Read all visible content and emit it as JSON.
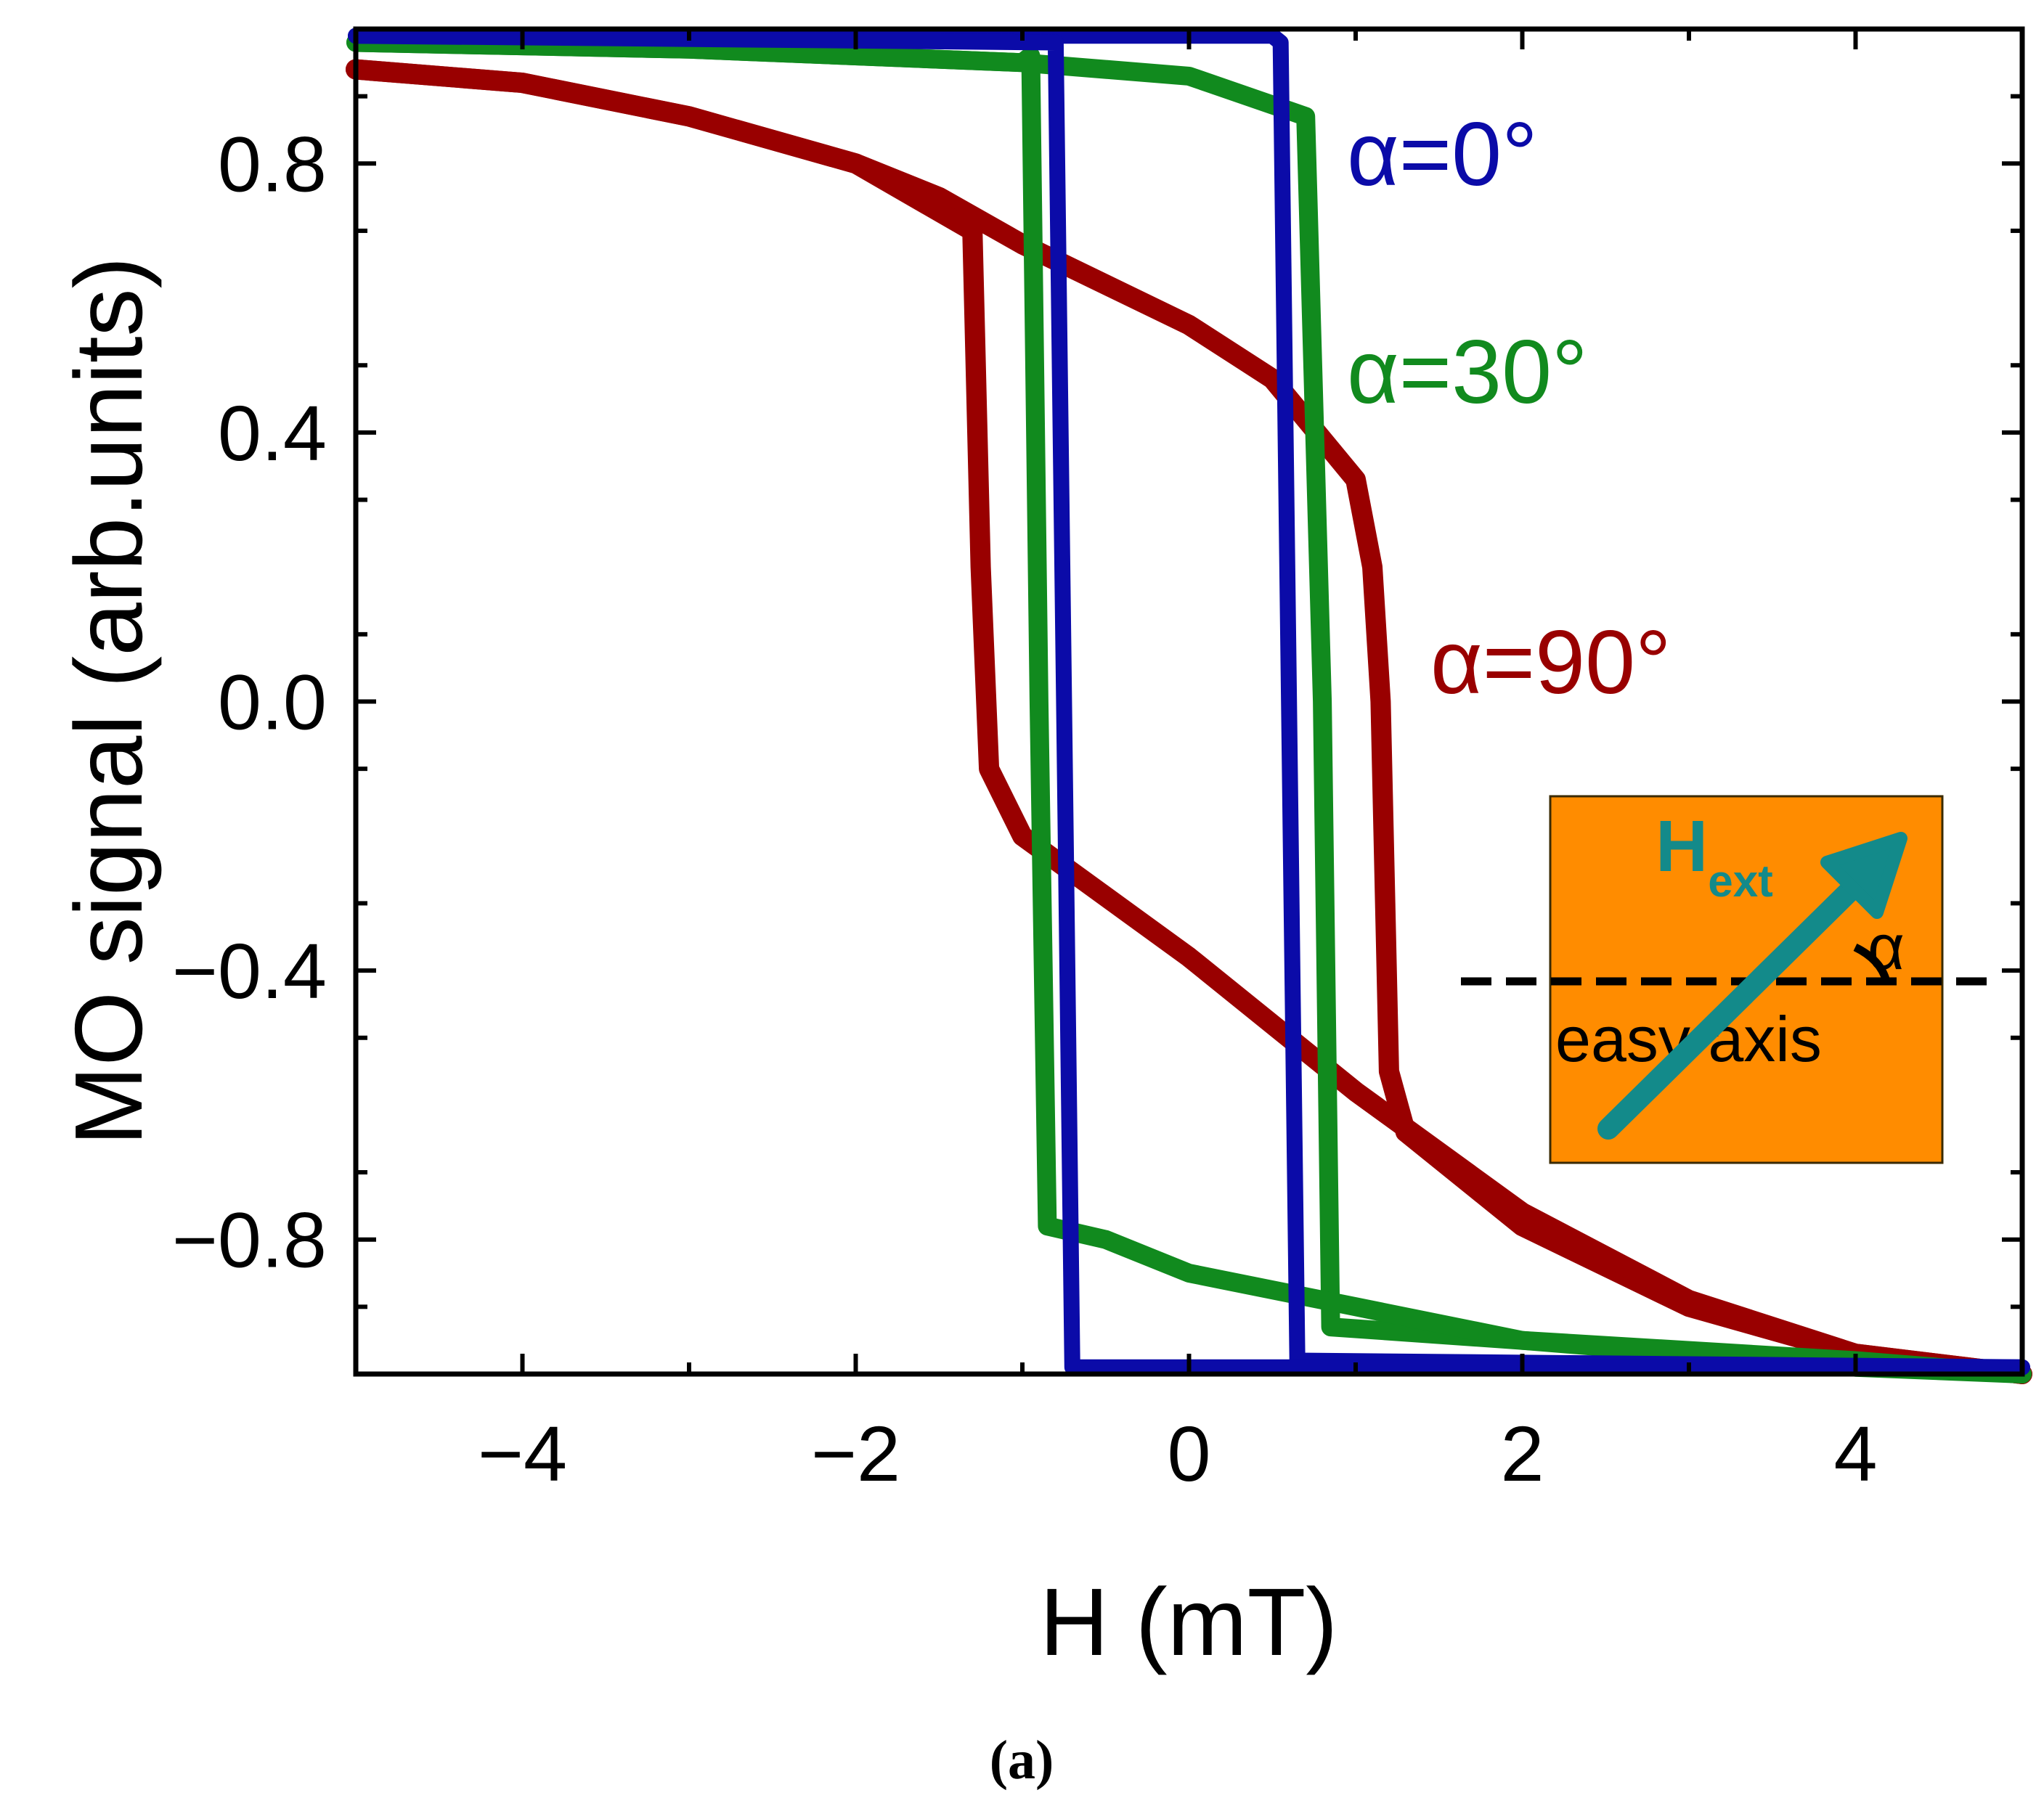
{
  "chart_data": {
    "type": "line",
    "title": "",
    "xlabel": "H (mT)",
    "ylabel": "MO signal (arb.units)",
    "xlim": [
      -5,
      5
    ],
    "ylim": [
      -1.0,
      1.0
    ],
    "xticks": [
      -4,
      -2,
      0,
      2,
      4
    ],
    "xtick_labels": [
      "−4",
      "−2",
      "0",
      "2",
      "4"
    ],
    "yticks": [
      0.8,
      0.4,
      0.0,
      -0.4,
      -0.8
    ],
    "ytick_labels": [
      "0.8",
      "0.4",
      "0.0",
      "−0.4",
      "−0.8"
    ],
    "grid": false,
    "caption": "(a)",
    "series": [
      {
        "name": "α=90°",
        "color": "#990000",
        "descending": [
          [
            -5,
            0.94
          ],
          [
            -4,
            0.92
          ],
          [
            -3,
            0.87
          ],
          [
            -2,
            0.8
          ],
          [
            -1.5,
            0.75
          ],
          [
            -1,
            0.68
          ],
          [
            0,
            0.56
          ],
          [
            0.5,
            0.48
          ],
          [
            1,
            0.33
          ],
          [
            1.1,
            0.2
          ],
          [
            1.15,
            0
          ],
          [
            1.2,
            -0.55
          ],
          [
            1.3,
            -0.64
          ],
          [
            2,
            -0.78
          ],
          [
            3,
            -0.9
          ],
          [
            4,
            -0.97
          ],
          [
            5,
            -1.0
          ]
        ],
        "ascending": [
          [
            -5,
            0.94
          ],
          [
            -4,
            0.92
          ],
          [
            -3,
            0.87
          ],
          [
            -2,
            0.8
          ],
          [
            -1.3,
            0.7
          ],
          [
            -1.25,
            0.2
          ],
          [
            -1.2,
            -0.1
          ],
          [
            -1,
            -0.2
          ],
          [
            0,
            -0.38
          ],
          [
            1,
            -0.58
          ],
          [
            2,
            -0.76
          ],
          [
            3,
            -0.89
          ],
          [
            4,
            -0.97
          ],
          [
            5,
            -1.0
          ]
        ]
      },
      {
        "name": "α=30°",
        "color": "#118a1e",
        "descending": [
          [
            -5,
            0.98
          ],
          [
            -3,
            0.97
          ],
          [
            -1,
            0.95
          ],
          [
            0,
            0.93
          ],
          [
            0.7,
            0.87
          ],
          [
            0.8,
            0.0
          ],
          [
            0.85,
            -0.93
          ],
          [
            2,
            -0.95
          ],
          [
            4,
            -0.98
          ],
          [
            5,
            -1.0
          ]
        ],
        "ascending": [
          [
            -5,
            0.98
          ],
          [
            -3,
            0.97
          ],
          [
            -1,
            0.95
          ],
          [
            -0.95,
            0.96
          ],
          [
            -0.9,
            0.0
          ],
          [
            -0.85,
            -0.78
          ],
          [
            -0.5,
            -0.8
          ],
          [
            0,
            -0.85
          ],
          [
            1,
            -0.9
          ],
          [
            2,
            -0.95
          ],
          [
            4,
            -0.99
          ],
          [
            5,
            -1.0
          ]
        ]
      },
      {
        "name": "α=0°",
        "color": "#0b0ba8",
        "descending": [
          [
            -5,
            0.99
          ],
          [
            0.5,
            0.99
          ],
          [
            0.55,
            0.98
          ],
          [
            0.6,
            0.0
          ],
          [
            0.65,
            -0.98
          ],
          [
            5,
            -0.99
          ]
        ],
        "ascending": [
          [
            -5,
            0.99
          ],
          [
            -0.8,
            0.98
          ],
          [
            -0.75,
            0.0
          ],
          [
            -0.7,
            -0.99
          ],
          [
            5,
            -0.99
          ]
        ]
      }
    ],
    "annotations": [
      "α=0°",
      "α=30°",
      "α=90°"
    ]
  },
  "inset": {
    "background": "#ff8c00",
    "field_label": "H",
    "field_subscript": "ext",
    "field_color": "#138a8a",
    "angle_label": "α",
    "axis_label": "easy axis"
  }
}
